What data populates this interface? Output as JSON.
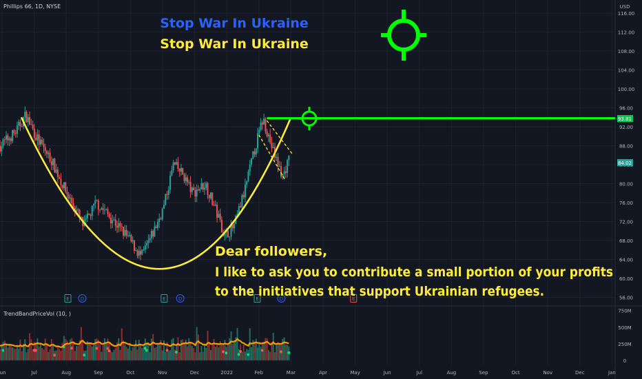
{
  "header": {
    "symbol": "Phillips 66, 1D, NYSE",
    "currency": "USD"
  },
  "banners": {
    "line1": "Stop War In Ukraine",
    "line2": "Stop War In Ukraine",
    "line1_color": "#2962ff",
    "line2_color": "#ffeb3b"
  },
  "message": {
    "line1": "Dear followers,",
    "line2": "I like to ask you to contribute a small portion of your profits",
    "line3": "to the initiatives that support Ukrainian refugees.",
    "color": "#ffeb3b"
  },
  "indicator": {
    "name": "TrendBandPriceVol (10, )"
  },
  "icons": {
    "target": "crosshair-target-icon",
    "earnings": "earnings-e-icon",
    "dividend": "dividend-d-icon"
  },
  "chart_data": {
    "type": "candlestick",
    "x_labels": [
      "Jun",
      "Jul",
      "Aug",
      "Sep",
      "Oct",
      "Nov",
      "Dec",
      "2022",
      "Feb",
      "Mar",
      "Apr",
      "May",
      "Jun",
      "Jul",
      "Aug",
      "Sep",
      "Oct",
      "Nov",
      "Dec",
      "Jan"
    ],
    "y_ticks": [
      56,
      60,
      64,
      68,
      72,
      76,
      80,
      84,
      88,
      92,
      96,
      100,
      104,
      108,
      112,
      116
    ],
    "y_tick_labels": [
      "56.00",
      "60.00",
      "64.00",
      "68.00",
      "72.00",
      "76.00",
      "80.00",
      "84.00",
      "88.00",
      "92.00",
      "96.00",
      "100.00",
      "104.00",
      "108.00",
      "112.00",
      "116.00"
    ],
    "ylim": [
      54,
      117
    ],
    "price_path": [
      [
        0,
        88
      ],
      [
        0.5,
        91
      ],
      [
        0.8,
        94.5
      ],
      [
        1.2,
        89
      ],
      [
        1.6,
        85
      ],
      [
        2.0,
        79
      ],
      [
        2.4,
        74
      ],
      [
        2.6,
        71
      ],
      [
        3.0,
        76
      ],
      [
        3.5,
        72.5
      ],
      [
        4.0,
        68.5
      ],
      [
        4.4,
        64.5
      ],
      [
        4.8,
        70
      ],
      [
        5.1,
        75
      ],
      [
        5.4,
        84
      ],
      [
        5.7,
        82
      ],
      [
        6.0,
        78
      ],
      [
        6.4,
        80
      ],
      [
        6.8,
        73
      ],
      [
        7.0,
        69
      ],
      [
        7.3,
        71
      ],
      [
        7.6,
        78
      ],
      [
        8.0,
        89
      ],
      [
        8.2,
        93.8
      ],
      [
        8.5,
        87
      ],
      [
        8.8,
        81.5
      ],
      [
        9.0,
        85
      ]
    ],
    "resistance": {
      "price": 93.81,
      "label": "93.81",
      "color": "#00ff00"
    },
    "last_price": {
      "price": 84.02,
      "label": "84.02",
      "color": "#26a69a"
    },
    "cup_curve": {
      "points": [
        [
          0.6,
          94.0
        ],
        [
          4.9,
          62.0
        ],
        [
          9.0,
          94.0
        ]
      ],
      "color": "#ffeb3b"
    },
    "channel_lines": [
      {
        "from": [
          8.25,
          93.3
        ],
        "to": [
          9.05,
          86.2
        ]
      },
      {
        "from": [
          8.0,
          90.3
        ],
        "to": [
          8.8,
          81.0
        ]
      }
    ],
    "event_markers": [
      {
        "x": 2.05,
        "kind": "E"
      },
      {
        "x": 2.5,
        "kind": "D"
      },
      {
        "x": 5.05,
        "kind": "E"
      },
      {
        "x": 5.55,
        "kind": "D"
      },
      {
        "x": 7.95,
        "kind": "E"
      },
      {
        "x": 8.7,
        "kind": "D"
      },
      {
        "x": 10.95,
        "kind": "E",
        "upcoming": true
      }
    ],
    "volume": {
      "y_tick_labels": [
        "750M",
        "500M",
        "250M",
        "0"
      ],
      "y_ticks": [
        750,
        500,
        250,
        0
      ],
      "avg_line_color": "#ff9800"
    }
  }
}
